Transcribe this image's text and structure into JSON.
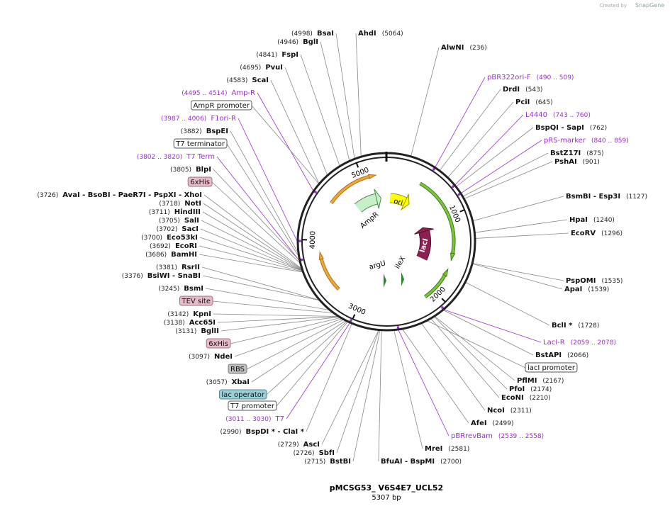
{
  "credit": {
    "prefix": "Created by",
    "brand": "SnapGene"
  },
  "title": "pMCSG53_ V6S4E7_UCL52",
  "subtitle": "5307 bp",
  "ruler": [
    1000,
    2000,
    3000,
    4000,
    5000
  ],
  "features": [
    "ori",
    "AmpR",
    "lacI",
    "argU",
    "ileX"
  ],
  "labels": [
    {
      "name": "AhdI",
      "pos": "(5064)"
    },
    {
      "name": "AlwNI",
      "pos": "(236)"
    },
    {
      "name": "pBR322ori-F",
      "pos": "(490 .. 509)"
    },
    {
      "name": "DrdI",
      "pos": "(543)"
    },
    {
      "name": "PciI",
      "pos": "(645)"
    },
    {
      "name": "L4440",
      "pos": "(743 .. 760)"
    },
    {
      "name": "BspQI - SapI",
      "pos": "(762)"
    },
    {
      "name": "pRS-marker",
      "pos": "(840 .. 859)"
    },
    {
      "name": "BstZ17I",
      "pos": "(875)"
    },
    {
      "name": "PshAI",
      "pos": "(901)"
    },
    {
      "name": "BsmBI - Esp3I",
      "pos": "(1127)"
    },
    {
      "name": "HpaI",
      "pos": "(1240)"
    },
    {
      "name": "EcoRV",
      "pos": "(1296)"
    },
    {
      "name": "PspOMI",
      "pos": "(1535)"
    },
    {
      "name": "ApaI",
      "pos": "(1539)"
    },
    {
      "name": "BclI *",
      "pos": "(1728)"
    },
    {
      "name": "LacI-R",
      "pos": "(2059 .. 2078)"
    },
    {
      "name": "BstAPI",
      "pos": "(2066)"
    },
    {
      "name": "lacI promoter"
    },
    {
      "name": "PflMI",
      "pos": "(2167)"
    },
    {
      "name": "PfoI",
      "pos": "(2174)"
    },
    {
      "name": "EcoNI",
      "pos": "(2210)"
    },
    {
      "name": "NcoI",
      "pos": "(2311)"
    },
    {
      "name": "AfeI",
      "pos": "(2499)"
    },
    {
      "name": "pBRrevBam",
      "pos": "(2539 .. 2558)"
    },
    {
      "name": "MreI",
      "pos": "(2581)"
    },
    {
      "name": "BfuAI - BspMI",
      "pos": "(2700)"
    },
    {
      "name": "BsaI",
      "pos": "(4998)"
    },
    {
      "name": "BglI",
      "pos": "(4946)"
    },
    {
      "name": "FspI",
      "pos": "(4841)"
    },
    {
      "name": "PvuI",
      "pos": "(4695)"
    },
    {
      "name": "ScaI",
      "pos": "(4583)"
    },
    {
      "name": "Amp-R",
      "pos": "(4495 .. 4514)"
    },
    {
      "name": "AmpR promoter"
    },
    {
      "name": "F1ori-R",
      "pos": "(3987 .. 4006)"
    },
    {
      "name": "BspEI",
      "pos": "(3882)"
    },
    {
      "name": "T7 terminator"
    },
    {
      "name": "T7 Term",
      "pos": "(3802 .. 3820)"
    },
    {
      "name": "BlpI",
      "pos": "(3805)"
    },
    {
      "name": "6xHis"
    },
    {
      "name": "AvaI - BsoBI - PaeR7I - PspXI - XhoI",
      "pos": "(3726)"
    },
    {
      "name": "NotI",
      "pos": "(3718)"
    },
    {
      "name": "HindIII",
      "pos": "(3711)"
    },
    {
      "name": "SalI",
      "pos": "(3705)"
    },
    {
      "name": "SacI",
      "pos": "(3702)"
    },
    {
      "name": "Eco53kI",
      "pos": "(3700)"
    },
    {
      "name": "EcoRI",
      "pos": "(3692)"
    },
    {
      "name": "BamHI",
      "pos": "(3686)"
    },
    {
      "name": "RsrII",
      "pos": "(3381)"
    },
    {
      "name": "BsiWI - SnaBI",
      "pos": "(3376)"
    },
    {
      "name": "BsmI",
      "pos": "(3245)"
    },
    {
      "name": "TEV site"
    },
    {
      "name": "KpnI",
      "pos": "(3142)"
    },
    {
      "name": "Acc65I",
      "pos": "(3138)"
    },
    {
      "name": "BglII",
      "pos": "(3131)"
    },
    {
      "name": "6xHis"
    },
    {
      "name": "NdeI",
      "pos": "(3097)"
    },
    {
      "name": "RBS"
    },
    {
      "name": "XbaI",
      "pos": "(3057)"
    },
    {
      "name": "lac operator"
    },
    {
      "name": "T7 promoter"
    },
    {
      "name": "T7",
      "pos": "(3011 .. 3030)"
    },
    {
      "name": "BspDI * - ClaI *",
      "pos": "(2990)"
    },
    {
      "name": "AscI",
      "pos": "(2729)"
    },
    {
      "name": "SbfI",
      "pos": "(2726)"
    },
    {
      "name": "BstBI",
      "pos": "(2715)"
    }
  ]
}
